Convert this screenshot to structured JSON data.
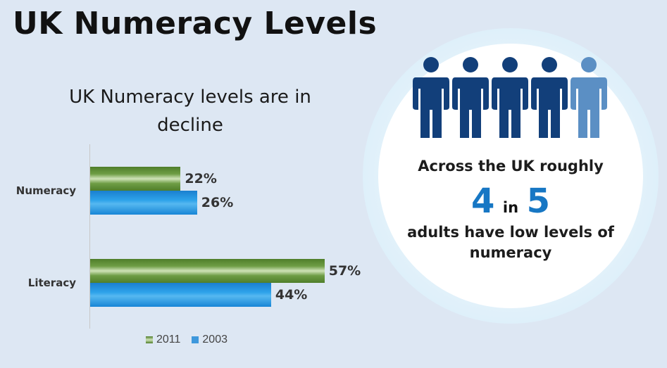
{
  "page_title": "UK Numeracy Levels",
  "chart_data": {
    "type": "bar",
    "orientation": "horizontal",
    "title": "UK Numeracy levels are in decline",
    "categories": [
      "Numeracy",
      "Literacy"
    ],
    "series": [
      {
        "name": "2011",
        "values": [
          22,
          57
        ],
        "labels": [
          "22%",
          "57%"
        ],
        "color": "#5a8a33"
      },
      {
        "name": "2003",
        "values": [
          26,
          44
        ],
        "labels": [
          "26%",
          "44%"
        ],
        "color": "#1f8ad6"
      }
    ],
    "unit": "%",
    "xlim": [
      0,
      80
    ],
    "legend_position": "bottom",
    "grid": false
  },
  "infographic": {
    "line1": "Across the UK roughly",
    "num1": "4",
    "in_word": "in",
    "num2": "5",
    "line2": "adults have low levels of",
    "line3": "numeracy",
    "people_total": 5,
    "people_highlighted": 4,
    "people_color": "#123f7a",
    "people_other_color": "#5b8fc4",
    "ring_color": "#1b86d1",
    "people_icon": "person-icon"
  }
}
